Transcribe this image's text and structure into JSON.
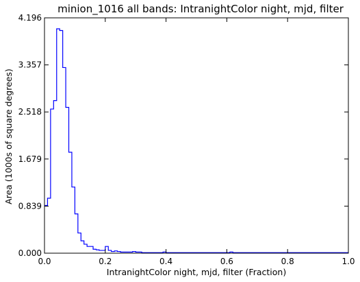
{
  "chart_data": {
    "type": "step-histogram",
    "title": "minion_1016 all bands: IntranightColor night, mjd, filter",
    "xlabel": "IntranightColor night, mjd, filter (Fraction)",
    "ylabel": "Area (1000s of square degrees)",
    "xlim": [
      0.0,
      1.0
    ],
    "ylim": [
      0.0,
      4.196
    ],
    "xticks": [
      "0.0",
      "0.2",
      "0.4",
      "0.6",
      "0.8",
      "1.0"
    ],
    "yticks": [
      "0.000",
      "0.839",
      "1.679",
      "2.518",
      "3.357",
      "4.196"
    ],
    "grid": false,
    "series": [
      {
        "color": "#0000ff",
        "bin_edges": [
          0.0,
          0.01,
          0.02,
          0.03,
          0.04,
          0.05,
          0.06,
          0.07,
          0.08,
          0.09,
          0.1,
          0.11,
          0.12,
          0.13,
          0.14,
          0.15,
          0.16,
          0.17,
          0.18,
          0.19,
          0.2,
          0.21,
          0.22,
          0.23,
          0.24,
          0.25,
          0.26,
          0.27,
          0.28,
          0.29,
          0.3,
          0.31,
          0.32,
          0.33,
          0.34,
          0.35,
          0.36,
          0.37,
          0.38,
          0.39,
          0.4,
          0.41,
          0.42,
          0.43,
          0.44,
          0.45,
          0.46,
          0.47,
          0.48,
          0.49,
          0.5,
          0.51,
          0.52,
          0.53,
          0.54,
          0.55,
          0.56,
          0.57,
          0.58,
          0.59,
          0.6,
          0.61,
          0.62,
          0.63,
          0.64,
          0.65,
          0.66,
          0.67,
          0.68,
          0.69,
          0.7,
          0.71,
          0.72,
          0.73,
          0.74,
          0.75,
          0.76,
          0.77,
          0.78,
          0.79,
          0.8,
          0.81,
          0.82,
          0.83,
          0.84,
          0.85,
          0.86,
          0.87,
          0.88,
          0.89,
          0.9,
          0.91,
          0.92,
          0.93,
          0.94,
          0.95,
          0.96,
          0.97,
          0.98,
          0.99,
          1.0
        ],
        "values": [
          0.85,
          0.98,
          2.57,
          2.72,
          4.0,
          3.97,
          3.31,
          2.6,
          1.8,
          1.18,
          0.7,
          0.36,
          0.22,
          0.16,
          0.12,
          0.12,
          0.07,
          0.06,
          0.05,
          0.05,
          0.12,
          0.05,
          0.03,
          0.04,
          0.03,
          0.02,
          0.02,
          0.02,
          0.02,
          0.03,
          0.02,
          0.02,
          0.01,
          0.01,
          0.01,
          0.01,
          0.01,
          0.01,
          0.01,
          0.02,
          0.01,
          0.01,
          0.01,
          0.01,
          0.01,
          0.01,
          0.01,
          0.01,
          0.01,
          0.01,
          0.01,
          0.01,
          0.01,
          0.01,
          0.01,
          0.01,
          0.01,
          0.01,
          0.01,
          0.01,
          0.01,
          0.02,
          0.01,
          0.01,
          0.01,
          0.01,
          0.01,
          0.01,
          0.01,
          0.01,
          0.01,
          0.01,
          0.01,
          0.01,
          0.01,
          0.01,
          0.01,
          0.01,
          0.01,
          0.01,
          0.01,
          0.01,
          0.01,
          0.01,
          0.01,
          0.01,
          0.01,
          0.01,
          0.01,
          0.01,
          0.01,
          0.01,
          0.01,
          0.01,
          0.01,
          0.01,
          0.01,
          0.01,
          0.01,
          0.01
        ]
      }
    ]
  }
}
